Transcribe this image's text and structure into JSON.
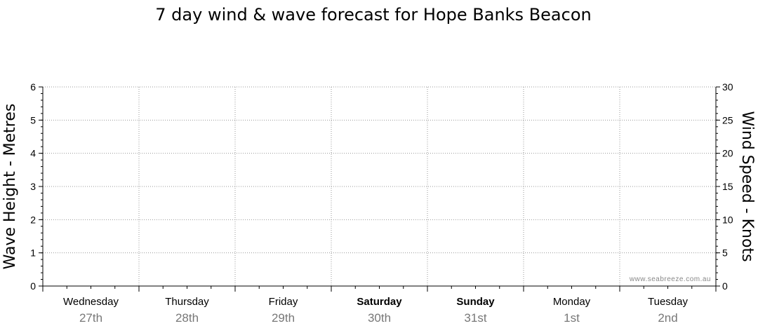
{
  "chart_data": {
    "type": "line",
    "title": "7 day wind & wave forecast for Hope Banks Beacon",
    "y_left": {
      "label": "Wave Height - Metres",
      "range": [
        0,
        6
      ],
      "ticks": [
        "0",
        "1",
        "2",
        "3",
        "4",
        "5",
        "6"
      ]
    },
    "y_right": {
      "label": "Wind Speed - Knots",
      "range": [
        0,
        30
      ],
      "ticks": [
        "0",
        "5",
        "10",
        "15",
        "20",
        "25",
        "30"
      ]
    },
    "days": [
      {
        "name": "Wednesday",
        "date": "27th",
        "bold": false
      },
      {
        "name": "Thursday",
        "date": "28th",
        "bold": false
      },
      {
        "name": "Friday",
        "date": "29th",
        "bold": false
      },
      {
        "name": "Saturday",
        "date": "30th",
        "bold": true
      },
      {
        "name": "Sunday",
        "date": "31st",
        "bold": true
      },
      {
        "name": "Monday",
        "date": "1st",
        "bold": false
      },
      {
        "name": "Tuesday",
        "date": "2nd",
        "bold": false
      }
    ],
    "series": [],
    "grid": true,
    "watermark": "www.seabreeze.com.au"
  },
  "colors": {
    "grid": "#999999",
    "axis": "#000000",
    "date_text": "#777777"
  }
}
